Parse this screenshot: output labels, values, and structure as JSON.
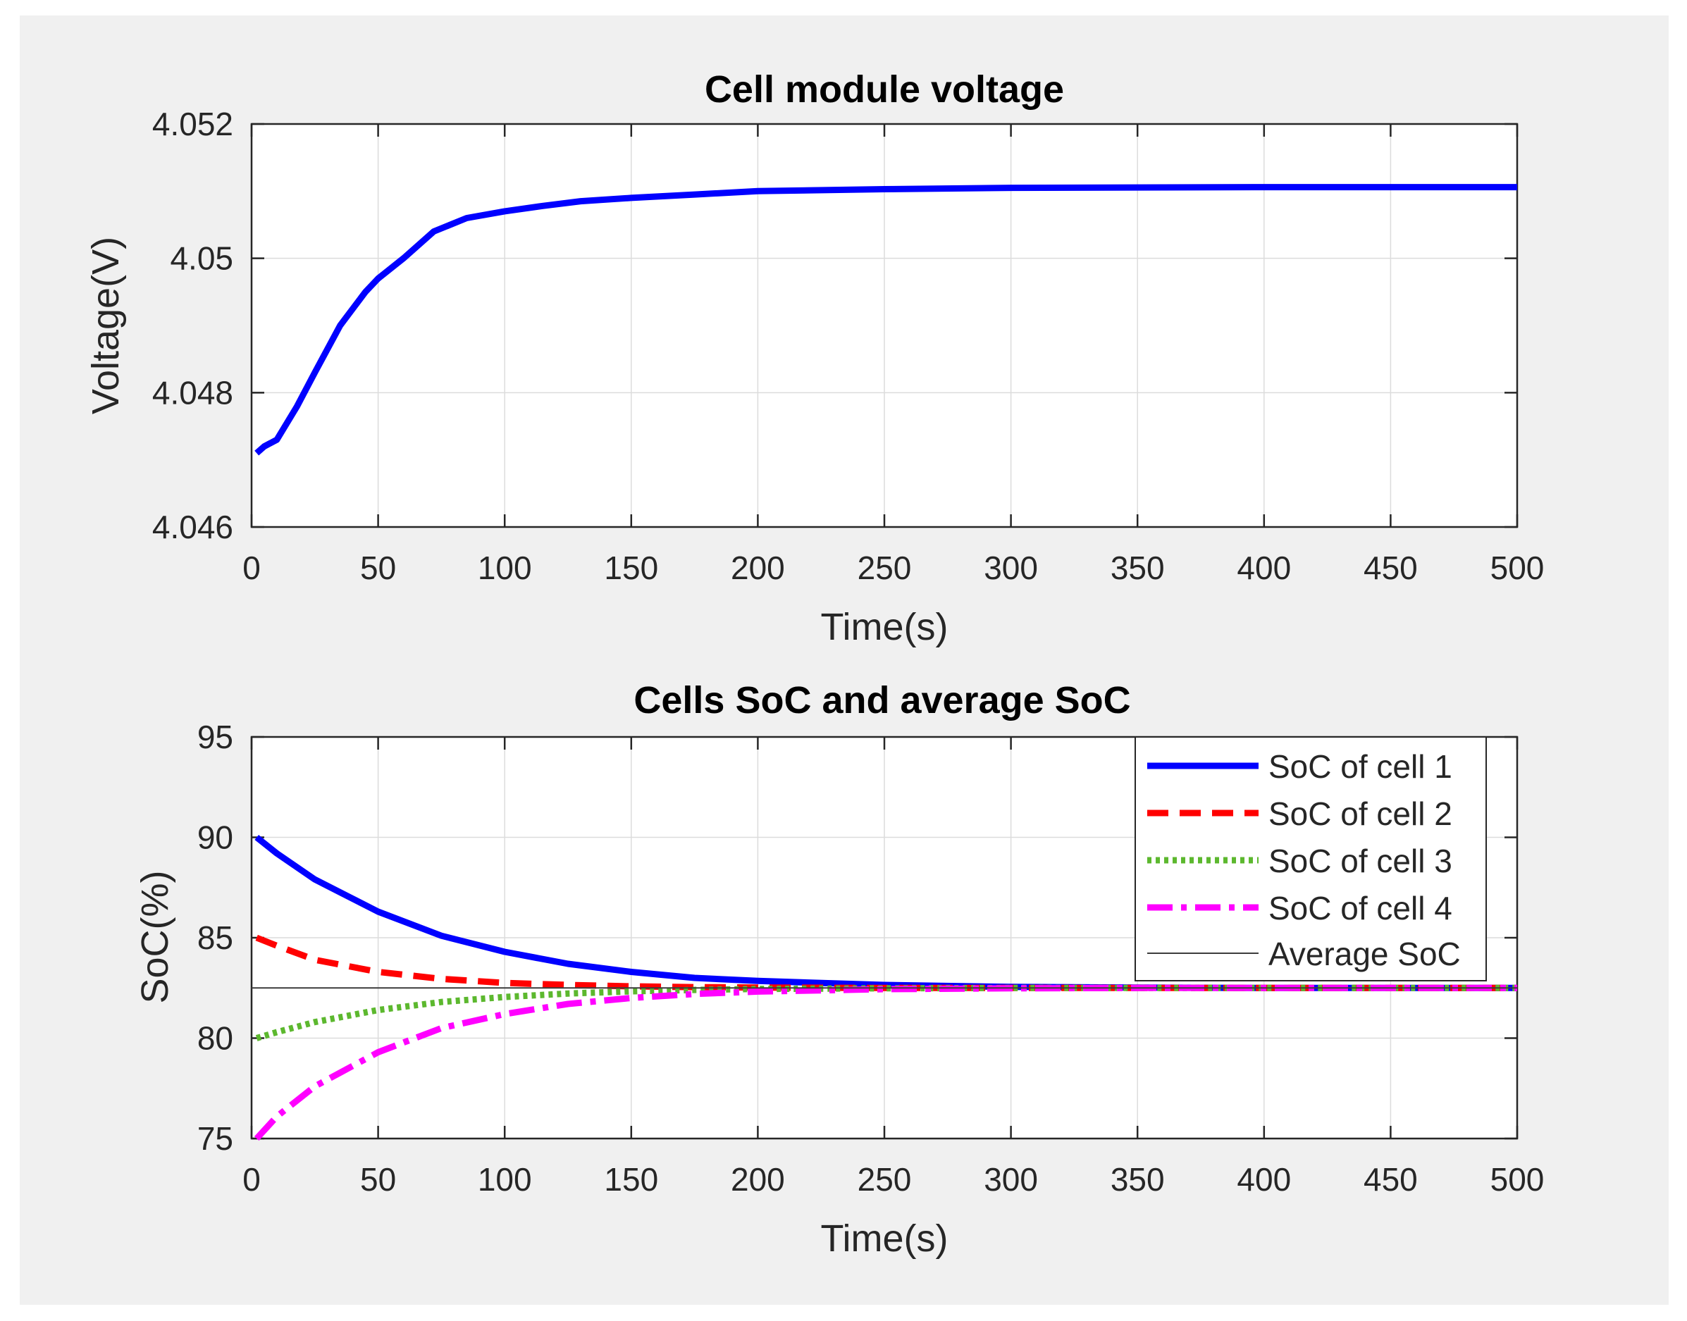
{
  "chart_data": [
    {
      "type": "line",
      "title": "Cell module voltage",
      "xlabel": "Time(s)",
      "ylabel": "Voltage(V)",
      "xlim": [
        0,
        500
      ],
      "ylim": [
        4.046,
        4.052
      ],
      "xticks": [
        0,
        50,
        100,
        150,
        200,
        250,
        300,
        350,
        400,
        450,
        500
      ],
      "xtick_labels": [
        "0",
        "50",
        "100",
        "150",
        "200",
        "250",
        "300",
        "350",
        "400",
        "450",
        "500"
      ],
      "yticks": [
        4.046,
        4.048,
        4.05,
        4.052
      ],
      "ytick_labels": [
        "4.046",
        "4.048",
        "4.05",
        "4.052"
      ],
      "grid": true,
      "series": [
        {
          "name": "Voltage",
          "color": "#0000ff",
          "style": "solid",
          "x": [
            2,
            5,
            10,
            18,
            25,
            35,
            45,
            50,
            60,
            72,
            85,
            100,
            115,
            130,
            150,
            175,
            200,
            250,
            300,
            400,
            500
          ],
          "y": [
            4.0471,
            4.0472,
            4.0473,
            4.0478,
            4.0483,
            4.049,
            4.0495,
            4.0497,
            4.05,
            4.0504,
            4.0506,
            4.0507,
            4.05078,
            4.05085,
            4.0509,
            4.05095,
            4.051,
            4.05103,
            4.05105,
            4.05106,
            4.05106
          ]
        }
      ]
    },
    {
      "type": "line",
      "title": "Cells SoC and average SoC",
      "xlabel": "Time(s)",
      "ylabel": "SoC(%)",
      "xlim": [
        0,
        500
      ],
      "ylim": [
        75,
        95
      ],
      "xticks": [
        0,
        50,
        100,
        150,
        200,
        250,
        300,
        350,
        400,
        450,
        500
      ],
      "xtick_labels": [
        "0",
        "50",
        "100",
        "150",
        "200",
        "250",
        "300",
        "350",
        "400",
        "450",
        "500"
      ],
      "yticks": [
        75,
        80,
        85,
        90,
        95
      ],
      "ytick_labels": [
        "75",
        "80",
        "85",
        "90",
        "95"
      ],
      "grid": true,
      "legend_position": "top-right",
      "series": [
        {
          "name": "SoC of cell 1",
          "color": "#0000ff",
          "style": "solid",
          "x": [
            2,
            10,
            25,
            50,
            75,
            100,
            125,
            150,
            175,
            200,
            250,
            300,
            350,
            400,
            450,
            500
          ],
          "y": [
            90.0,
            89.2,
            87.9,
            86.3,
            85.1,
            84.3,
            83.7,
            83.3,
            83.0,
            82.85,
            82.65,
            82.55,
            82.52,
            82.5,
            82.5,
            82.5
          ]
        },
        {
          "name": "SoC of cell 2",
          "color": "#ff0000",
          "style": "dashed",
          "x": [
            2,
            10,
            25,
            50,
            75,
            100,
            125,
            150,
            175,
            200,
            250,
            300,
            350,
            400,
            450,
            500
          ],
          "y": [
            85.0,
            84.6,
            83.9,
            83.3,
            82.95,
            82.75,
            82.65,
            82.58,
            82.54,
            82.52,
            82.5,
            82.5,
            82.5,
            82.5,
            82.5,
            82.5
          ]
        },
        {
          "name": "SoC of cell 3",
          "color": "#5cb82e",
          "style": "dotted",
          "x": [
            2,
            10,
            25,
            50,
            75,
            100,
            125,
            150,
            175,
            200,
            250,
            300,
            350,
            400,
            450,
            500
          ],
          "y": [
            80.0,
            80.3,
            80.8,
            81.4,
            81.8,
            82.05,
            82.22,
            82.33,
            82.4,
            82.45,
            82.48,
            82.5,
            82.5,
            82.5,
            82.5,
            82.5
          ]
        },
        {
          "name": "SoC of cell 4",
          "color": "#ff00ff",
          "style": "dashdot",
          "x": [
            2,
            10,
            25,
            50,
            75,
            100,
            125,
            150,
            175,
            200,
            250,
            300,
            350,
            400,
            450,
            500
          ],
          "y": [
            75.0,
            76.1,
            77.6,
            79.3,
            80.5,
            81.2,
            81.7,
            82.0,
            82.2,
            82.32,
            82.44,
            82.48,
            82.5,
            82.5,
            82.5,
            82.5
          ]
        },
        {
          "name": "Average SoC",
          "color": "#3c3c3c",
          "style": "thin",
          "x": [
            0,
            500
          ],
          "y": [
            82.5,
            82.5
          ]
        }
      ]
    }
  ]
}
